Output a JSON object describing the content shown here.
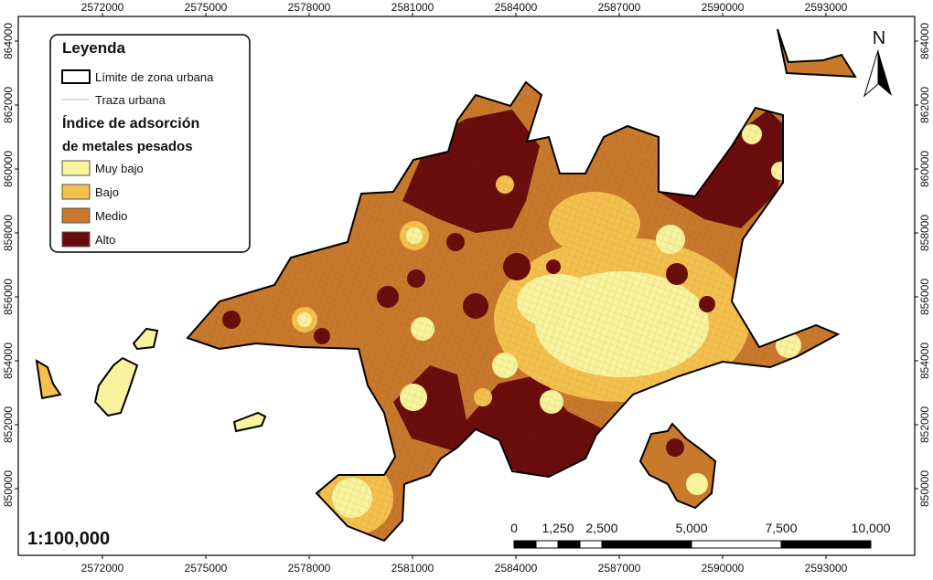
{
  "legend": {
    "title": "Leyenda",
    "boundary": "Límite de zona urbana",
    "roads": "Traza urbana",
    "index_title_1": "Índice de adsorción",
    "index_title_2": "de metales pesados",
    "classes": [
      {
        "label": "Muy bajo",
        "color": "#f8f39c"
      },
      {
        "label": "Bajo",
        "color": "#f4c04e"
      },
      {
        "label": "Medio",
        "color": "#c8792c"
      },
      {
        "label": "Alto",
        "color": "#6b0c0c"
      }
    ]
  },
  "x_ticks": [
    "2572000",
    "2575000",
    "2578000",
    "2581000",
    "2584000",
    "2587000",
    "2590000",
    "2593000"
  ],
  "y_ticks": [
    "864000",
    "862000",
    "860000",
    "858000",
    "856000",
    "854000",
    "852000",
    "850000"
  ],
  "scale": "1:100,000",
  "scale_bar": [
    "0",
    "1,250",
    "2,500",
    "5,000",
    "7,500",
    "10,000"
  ],
  "north": "N"
}
